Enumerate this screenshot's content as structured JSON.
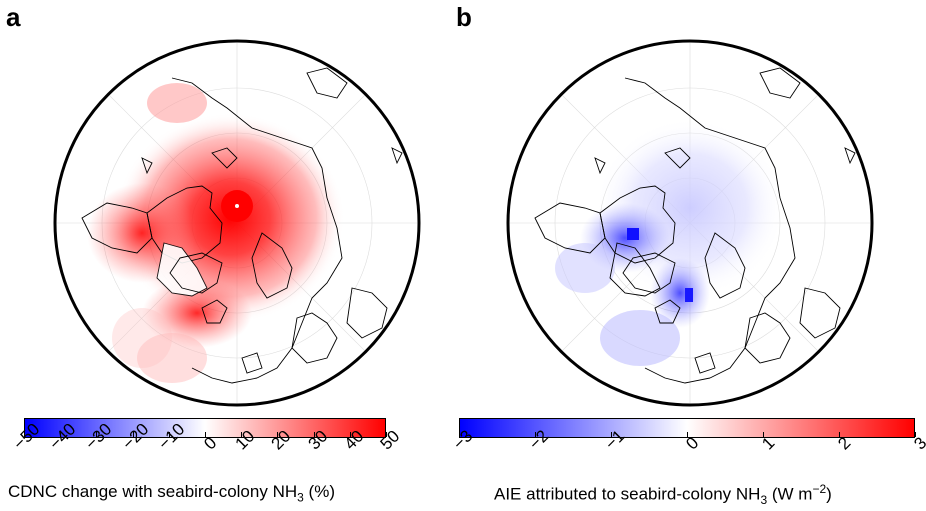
{
  "panels": [
    {
      "letter": "a",
      "colorbar": {
        "ticks": [
          "−50",
          "−40",
          "−30",
          "−20",
          "−10",
          "0",
          "10",
          "20",
          "30",
          "40",
          "50"
        ],
        "title_pre": "CDNC change with seabird-colony NH",
        "title_sub": "3",
        "title_post": " (%)",
        "min": -50,
        "max": 50,
        "neg_color": "#0000ff",
        "mid_color": "#ffffff",
        "pos_color": "#ff0000"
      }
    },
    {
      "letter": "b",
      "colorbar": {
        "ticks": [
          "−3",
          "−2",
          "−1",
          "0",
          "1",
          "2",
          "3"
        ],
        "title_pre": "AIE attributed to seabird-colony NH",
        "title_sub": "3",
        "title_mid": " (W m",
        "title_sup": "−2",
        "title_post": ")",
        "min": -3,
        "max": 3,
        "neg_color": "#0000ff",
        "mid_color": "#ffffff",
        "pos_color": "#ff0000"
      }
    }
  ]
}
